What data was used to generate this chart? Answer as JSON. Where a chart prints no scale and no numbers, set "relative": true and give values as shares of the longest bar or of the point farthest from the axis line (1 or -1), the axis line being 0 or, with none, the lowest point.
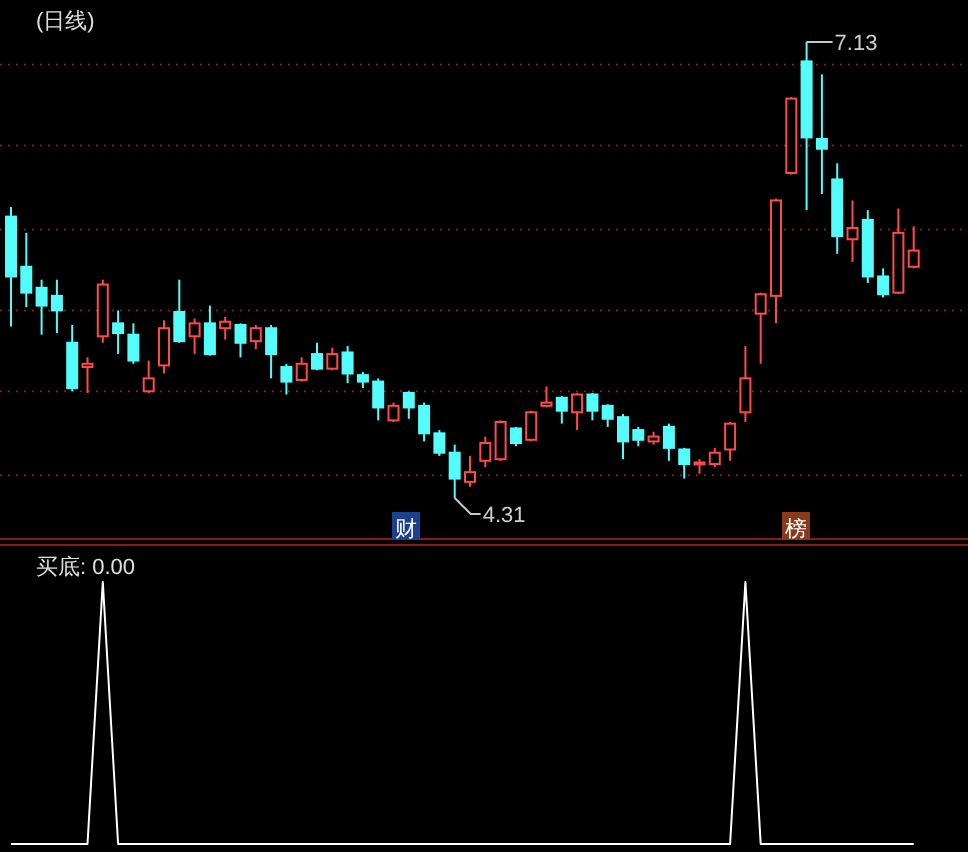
{
  "chart_data": [
    {
      "type": "candlestick",
      "title": "(日线)",
      "categories": [
        null,
        null,
        null,
        null,
        null,
        null,
        null,
        null,
        null,
        null,
        null,
        null,
        null,
        null,
        null,
        null,
        null,
        null,
        null,
        null,
        null,
        null,
        null,
        null,
        null,
        null,
        null,
        null,
        null,
        null,
        null,
        null,
        null,
        null,
        null,
        null,
        null,
        null,
        null,
        null,
        null,
        null,
        null,
        null,
        null,
        null,
        null,
        null,
        null,
        null,
        null,
        null,
        null,
        null,
        null,
        null,
        null,
        null,
        null,
        null
      ],
      "ohlc": [
        [
          6.05,
          6.11,
          5.37,
          5.68
        ],
        [
          5.74,
          5.95,
          5.49,
          5.58
        ],
        [
          5.61,
          5.66,
          5.32,
          5.5
        ],
        [
          5.56,
          5.66,
          5.33,
          5.47
        ],
        [
          5.27,
          5.38,
          4.97,
          4.99
        ],
        [
          5.12,
          5.18,
          4.96,
          5.14
        ],
        [
          5.31,
          5.66,
          5.27,
          5.63
        ],
        [
          5.39,
          5.47,
          5.2,
          5.33
        ],
        [
          5.32,
          5.39,
          5.14,
          5.16
        ],
        [
          4.97,
          5.16,
          4.96,
          5.05
        ],
        [
          5.13,
          5.41,
          5.08,
          5.36
        ],
        [
          5.46,
          5.66,
          5.27,
          5.28
        ],
        [
          5.31,
          5.42,
          5.2,
          5.39
        ],
        [
          5.39,
          5.5,
          5.19,
          5.2
        ],
        [
          5.36,
          5.43,
          5.29,
          5.4
        ],
        [
          5.38,
          5.39,
          5.18,
          5.27
        ],
        [
          5.28,
          5.38,
          5.23,
          5.36
        ],
        [
          5.36,
          5.38,
          5.05,
          5.2
        ],
        [
          5.12,
          5.14,
          4.95,
          5.03
        ],
        [
          5.04,
          5.18,
          5.03,
          5.14
        ],
        [
          5.2,
          5.27,
          5.1,
          5.11
        ],
        [
          5.11,
          5.24,
          5.1,
          5.2
        ],
        [
          5.21,
          5.25,
          5.02,
          5.08
        ],
        [
          5.07,
          5.09,
          4.99,
          5.03
        ],
        [
          5.03,
          5.05,
          4.79,
          4.87
        ],
        [
          4.79,
          4.9,
          4.78,
          4.88
        ],
        [
          4.96,
          4.97,
          4.8,
          4.87
        ],
        [
          4.88,
          4.9,
          4.66,
          4.71
        ],
        [
          4.71,
          4.73,
          4.57,
          4.59
        ],
        [
          4.59,
          4.64,
          4.31,
          4.43
        ],
        [
          4.41,
          4.57,
          4.38,
          4.47
        ],
        [
          4.54,
          4.69,
          4.5,
          4.65
        ],
        [
          4.55,
          4.79,
          4.54,
          4.78
        ],
        [
          4.74,
          4.75,
          4.63,
          4.65
        ],
        [
          4.67,
          4.85,
          4.66,
          4.84
        ],
        [
          4.88,
          5.0,
          4.87,
          4.9
        ],
        [
          4.93,
          4.94,
          4.77,
          4.85
        ],
        [
          4.84,
          4.96,
          4.73,
          4.95
        ],
        [
          4.95,
          4.96,
          4.79,
          4.85
        ],
        [
          4.88,
          4.89,
          4.75,
          4.8
        ],
        [
          4.81,
          4.83,
          4.55,
          4.66
        ],
        [
          4.73,
          4.75,
          4.63,
          4.67
        ],
        [
          4.66,
          4.72,
          4.64,
          4.69
        ],
        [
          4.75,
          4.77,
          4.54,
          4.62
        ],
        [
          4.61,
          4.62,
          4.43,
          4.52
        ],
        [
          4.52,
          4.55,
          4.46,
          4.53
        ],
        [
          4.52,
          4.62,
          4.5,
          4.59
        ],
        [
          4.61,
          4.78,
          4.54,
          4.77
        ],
        [
          4.84,
          5.25,
          4.78,
          5.05
        ],
        [
          5.45,
          5.58,
          5.14,
          5.57
        ],
        [
          5.56,
          6.16,
          5.39,
          6.15
        ],
        [
          6.32,
          6.79,
          6.31,
          6.78
        ],
        [
          7.01,
          7.13,
          6.09,
          6.54
        ],
        [
          6.53,
          6.93,
          6.19,
          6.47
        ],
        [
          6.28,
          6.38,
          5.82,
          5.93
        ],
        [
          5.91,
          6.15,
          5.77,
          5.98
        ],
        [
          6.03,
          6.09,
          5.64,
          5.68
        ],
        [
          5.68,
          5.73,
          5.55,
          5.57
        ],
        [
          5.58,
          6.1,
          5.57,
          5.95
        ],
        [
          5.74,
          5.99,
          5.73,
          5.84
        ]
      ],
      "yticks": [
        {
          "value": 6.99,
          "label": null
        },
        {
          "value": 6.49,
          "label": null
        },
        {
          "value": 5.97,
          "label": null
        },
        {
          "value": 5.47,
          "label": null
        },
        {
          "value": 4.97,
          "label": null
        },
        {
          "value": 4.45,
          "label": null
        }
      ],
      "grid": "y",
      "annotations": [
        "7.13",
        "4.31",
        "财",
        "榜"
      ]
    },
    {
      "type": "line",
      "title": "买底: 0.00",
      "relative": true,
      "categories": [
        null,
        null,
        null,
        null,
        null,
        null,
        null,
        null,
        null,
        null,
        null,
        null,
        null,
        null,
        null,
        null,
        null,
        null,
        null,
        null,
        null,
        null,
        null,
        null,
        null,
        null,
        null,
        null,
        null,
        null,
        null,
        null,
        null,
        null,
        null,
        null,
        null,
        null,
        null,
        null,
        null,
        null,
        null,
        null,
        null,
        null,
        null,
        null,
        null,
        null,
        null,
        null,
        null,
        null,
        null,
        null,
        null,
        null,
        null,
        null
      ],
      "series": [
        {
          "color": "#ffffff",
          "values": [
            0,
            0,
            0,
            0,
            0,
            0,
            1,
            0,
            0,
            0,
            0,
            0,
            0,
            0,
            0,
            0,
            0,
            0,
            0,
            0,
            0,
            0,
            0,
            0,
            0,
            0,
            0,
            0,
            0,
            0,
            0,
            0,
            0,
            0,
            0,
            0,
            0,
            0,
            0,
            0,
            0,
            0,
            0,
            0,
            0,
            0,
            0,
            0,
            1,
            0,
            0,
            0,
            0,
            0,
            0,
            0,
            0,
            0,
            0,
            0
          ]
        }
      ]
    }
  ]
}
